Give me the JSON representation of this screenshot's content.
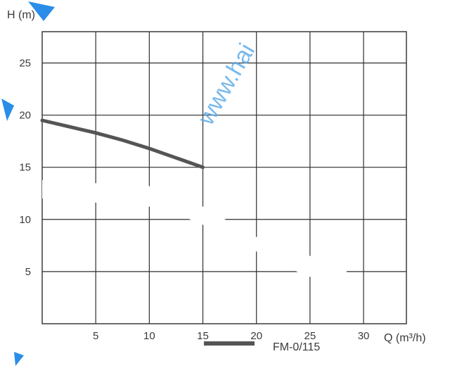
{
  "chart_data": {
    "type": "line",
    "ylabel": "H (m)",
    "xlabel": "Q (m³/h)",
    "xlim": [
      0,
      34
    ],
    "ylim": [
      0,
      28
    ],
    "x_ticks": [
      5,
      10,
      15,
      20,
      25,
      30
    ],
    "y_ticks": [
      5,
      10,
      15,
      20,
      25
    ],
    "grid": true,
    "legend_position": "bottom-right",
    "series": [
      {
        "name": "FM-0/115",
        "color": "#555555",
        "x": [
          0,
          2.5,
          5,
          7.5,
          10,
          12.5,
          15
        ],
        "y": [
          19.5,
          18.9,
          18.3,
          17.6,
          16.8,
          15.9,
          15.0
        ]
      }
    ]
  },
  "watermark": "www.hai",
  "watermark_color": "#5aa8e8"
}
